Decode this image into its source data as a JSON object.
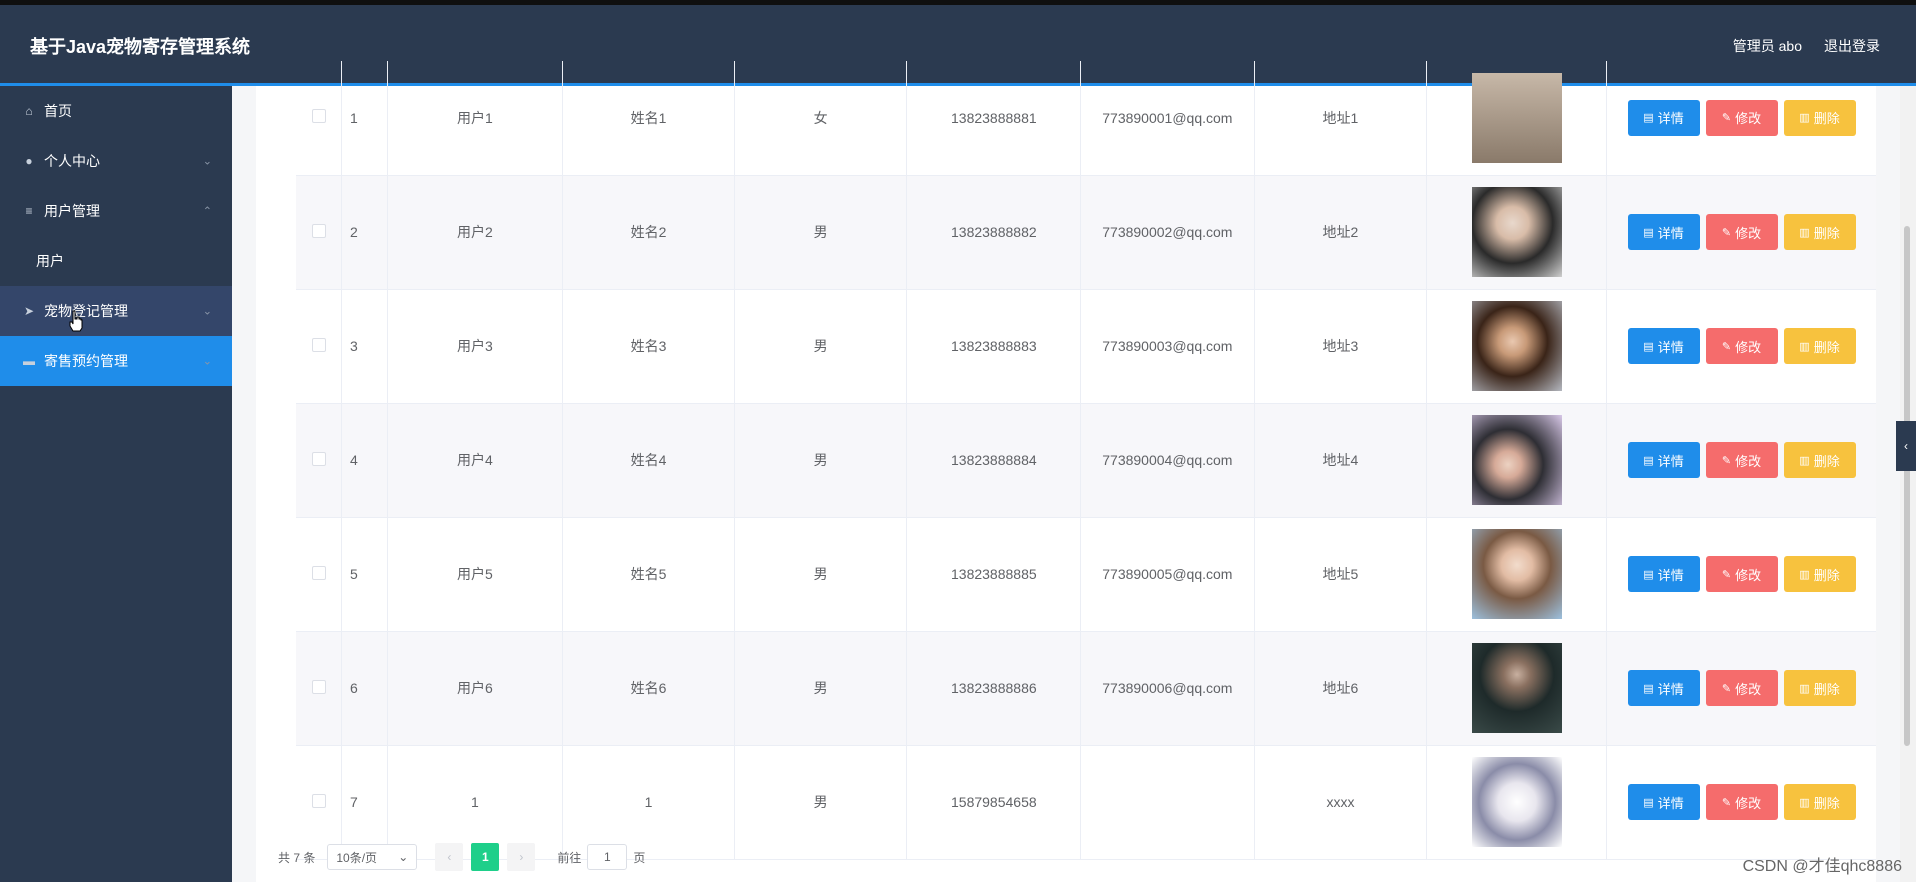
{
  "header": {
    "title": "基于Java宠物寄存管理系统",
    "admin_label": "管理员 abo",
    "logout_label": "退出登录"
  },
  "sidebar": {
    "items": [
      {
        "label": "首页",
        "icon": "home-icon"
      },
      {
        "label": "个人中心",
        "icon": "user-icon"
      },
      {
        "label": "用户管理",
        "icon": "menu-icon"
      },
      {
        "label": "用户"
      },
      {
        "label": "宠物登记管理",
        "icon": "send-icon"
      },
      {
        "label": "寄售预约管理",
        "icon": "book-icon"
      }
    ]
  },
  "table": {
    "rows": [
      {
        "idx": "1",
        "user": "用户1",
        "name": "姓名1",
        "sex": "女",
        "phone": "13823888881",
        "email": "773890001@qq.com",
        "address": "地址1"
      },
      {
        "idx": "2",
        "user": "用户2",
        "name": "姓名2",
        "sex": "男",
        "phone": "13823888882",
        "email": "773890002@qq.com",
        "address": "地址2"
      },
      {
        "idx": "3",
        "user": "用户3",
        "name": "姓名3",
        "sex": "男",
        "phone": "13823888883",
        "email": "773890003@qq.com",
        "address": "地址3"
      },
      {
        "idx": "4",
        "user": "用户4",
        "name": "姓名4",
        "sex": "男",
        "phone": "13823888884",
        "email": "773890004@qq.com",
        "address": "地址4"
      },
      {
        "idx": "5",
        "user": "用户5",
        "name": "姓名5",
        "sex": "男",
        "phone": "13823888885",
        "email": "773890005@qq.com",
        "address": "地址5"
      },
      {
        "idx": "6",
        "user": "用户6",
        "name": "姓名6",
        "sex": "男",
        "phone": "13823888886",
        "email": "773890006@qq.com",
        "address": "地址6"
      },
      {
        "idx": "7",
        "user": "1",
        "name": "1",
        "sex": "男",
        "phone": "15879854658",
        "email": "",
        "address": "xxxx"
      }
    ],
    "actions": {
      "detail": "详情",
      "edit": "修改",
      "delete": "删除"
    }
  },
  "pagination": {
    "total": "共 7 条",
    "page_size": "10条/页",
    "current_page": "1",
    "goto_label": "前往",
    "goto_value": "1",
    "page_suffix": "页"
  },
  "watermark": "CSDN @才佳qhc8886"
}
